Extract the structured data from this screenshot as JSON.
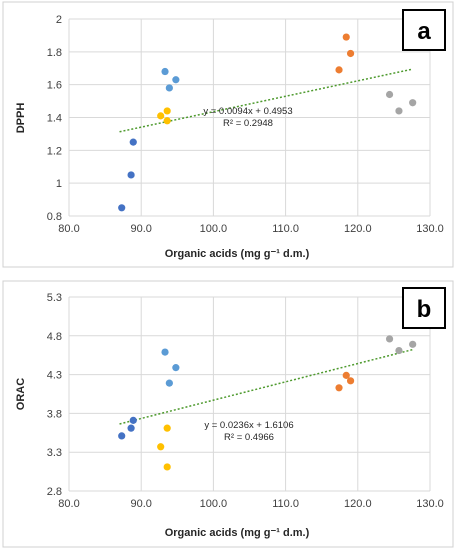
{
  "colors": {
    "blue_dark": "#4472c4",
    "blue_light": "#5b9bd5",
    "yellow": "#ffc000",
    "orange": "#ed7d31",
    "gray": "#a5a5a5",
    "trendline": "#4e9a2e"
  },
  "chart_data": [
    {
      "type": "scatter",
      "panel_label": "a",
      "xlabel": "Organic acids (mg g⁻¹ d.m.)",
      "ylabel": "DPPH",
      "xlim": [
        80,
        130
      ],
      "ylim": [
        0.8,
        2.0
      ],
      "x_ticks": [
        "80.0",
        "90.0",
        "100.0",
        "110.0",
        "120.0",
        "130.0"
      ],
      "y_ticks": [
        "0.8",
        "1",
        "1.2",
        "1.4",
        "1.6",
        "1.8",
        "2"
      ],
      "grid": true,
      "series": [
        {
          "color": "blue_dark",
          "points": [
            {
              "x": 87.3,
              "y": 0.85
            },
            {
              "x": 88.6,
              "y": 1.05
            },
            {
              "x": 88.9,
              "y": 1.25
            }
          ]
        },
        {
          "color": "blue_light",
          "points": [
            {
              "x": 93.3,
              "y": 1.68
            },
            {
              "x": 93.9,
              "y": 1.58
            },
            {
              "x": 94.8,
              "y": 1.63
            }
          ]
        },
        {
          "color": "yellow",
          "points": [
            {
              "x": 92.7,
              "y": 1.41
            },
            {
              "x": 93.6,
              "y": 1.44
            },
            {
              "x": 93.6,
              "y": 1.38
            }
          ]
        },
        {
          "color": "orange",
          "points": [
            {
              "x": 117.4,
              "y": 1.69
            },
            {
              "x": 118.4,
              "y": 1.89
            },
            {
              "x": 119.0,
              "y": 1.79
            }
          ]
        },
        {
          "color": "gray",
          "points": [
            {
              "x": 124.4,
              "y": 1.54
            },
            {
              "x": 125.7,
              "y": 1.44
            },
            {
              "x": 127.6,
              "y": 1.49
            }
          ]
        }
      ],
      "trendline": {
        "slope": 0.0094,
        "intercept": 0.4953,
        "x_range": [
          87.0,
          127.6
        ]
      },
      "equation": "y = 0.0094x + 0.4953",
      "r_squared": "R² = 0.2948"
    },
    {
      "type": "scatter",
      "panel_label": "b",
      "xlabel": "Organic acids (mg g⁻¹ d.m.)",
      "ylabel": "ORAC",
      "xlim": [
        80,
        130
      ],
      "ylim": [
        2.8,
        5.3
      ],
      "x_ticks": [
        "80.0",
        "90.0",
        "100.0",
        "110.0",
        "120.0",
        "130.0"
      ],
      "y_ticks": [
        "2.8",
        "3.3",
        "3.8",
        "4.3",
        "4.8",
        "5.3"
      ],
      "grid": true,
      "series": [
        {
          "color": "blue_dark",
          "points": [
            {
              "x": 87.3,
              "y": 3.51
            },
            {
              "x": 88.6,
              "y": 3.61
            },
            {
              "x": 88.9,
              "y": 3.71
            }
          ]
        },
        {
          "color": "blue_light",
          "points": [
            {
              "x": 93.3,
              "y": 4.59
            },
            {
              "x": 93.9,
              "y": 4.19
            },
            {
              "x": 94.8,
              "y": 4.39
            }
          ]
        },
        {
          "color": "yellow",
          "points": [
            {
              "x": 92.7,
              "y": 3.37
            },
            {
              "x": 93.6,
              "y": 3.61
            },
            {
              "x": 93.6,
              "y": 3.11
            }
          ]
        },
        {
          "color": "orange",
          "points": [
            {
              "x": 117.4,
              "y": 4.13
            },
            {
              "x": 118.4,
              "y": 4.29
            },
            {
              "x": 119.0,
              "y": 4.22
            }
          ]
        },
        {
          "color": "gray",
          "points": [
            {
              "x": 124.4,
              "y": 4.76
            },
            {
              "x": 125.7,
              "y": 4.61
            },
            {
              "x": 127.6,
              "y": 4.69
            }
          ]
        }
      ],
      "trendline": {
        "slope": 0.0236,
        "intercept": 1.6106,
        "x_range": [
          87.0,
          127.6
        ]
      },
      "equation": "y = 0.0236x + 1.6106",
      "r_squared": "R² = 0.4966"
    }
  ]
}
